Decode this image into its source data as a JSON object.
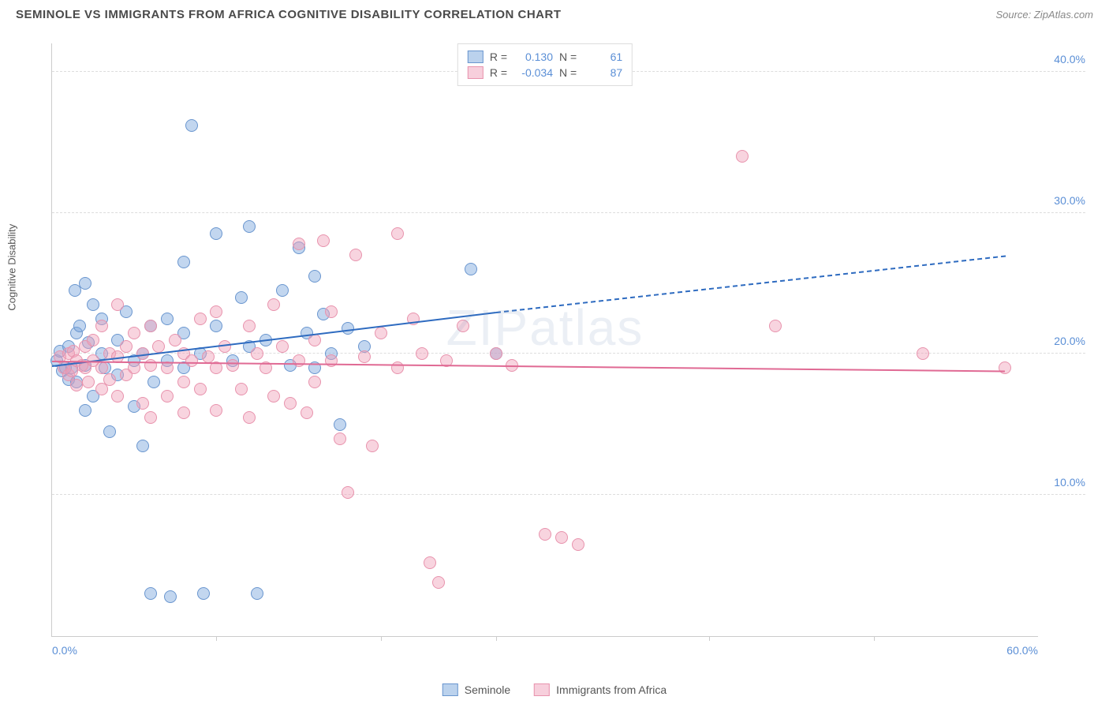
{
  "title": "SEMINOLE VS IMMIGRANTS FROM AFRICA COGNITIVE DISABILITY CORRELATION CHART",
  "source": "Source: ZipAtlas.com",
  "watermark": "ZIPatlas",
  "y_axis_label": "Cognitive Disability",
  "chart": {
    "type": "scatter",
    "xlim": [
      0,
      60
    ],
    "ylim": [
      0,
      42
    ],
    "x_ticks": [
      0,
      60
    ],
    "x_tick_labels": [
      "0.0%",
      "60.0%"
    ],
    "y_ticks": [
      10,
      20,
      30,
      40
    ],
    "y_tick_labels": [
      "10.0%",
      "20.0%",
      "30.0%",
      "40.0%"
    ],
    "background_color": "#ffffff",
    "grid_color": "#dddddd",
    "axis_color": "#cccccc",
    "tick_label_color": "#5b8fd6",
    "marker_size": 16,
    "series": [
      {
        "name": "Seminole",
        "color_fill": "rgba(120,165,220,0.45)",
        "color_stroke": "#6a96cf",
        "r_value": "0.130",
        "n_value": "61",
        "trend": {
          "x1": 0,
          "y1": 19.2,
          "x2": 27,
          "y2": 23.0,
          "color": "#2e6bc0",
          "extend_x": 58,
          "extend_y": 27.0
        },
        "points": [
          [
            0.3,
            19.5
          ],
          [
            0.5,
            20.2
          ],
          [
            0.6,
            18.8
          ],
          [
            0.8,
            19.0
          ],
          [
            1.0,
            20.5
          ],
          [
            1.0,
            18.2
          ],
          [
            1.2,
            19.0
          ],
          [
            1.4,
            24.5
          ],
          [
            1.5,
            21.5
          ],
          [
            1.5,
            18.0
          ],
          [
            1.7,
            22.0
          ],
          [
            2.0,
            25.0
          ],
          [
            2.0,
            19.2
          ],
          [
            2.0,
            16.0
          ],
          [
            2.2,
            20.8
          ],
          [
            2.5,
            23.5
          ],
          [
            2.5,
            17.0
          ],
          [
            3.0,
            22.5
          ],
          [
            3.0,
            20.0
          ],
          [
            3.2,
            19.0
          ],
          [
            3.5,
            14.5
          ],
          [
            4.0,
            21.0
          ],
          [
            4.0,
            18.5
          ],
          [
            4.5,
            23.0
          ],
          [
            5.0,
            19.5
          ],
          [
            5.0,
            16.3
          ],
          [
            5.5,
            20.0
          ],
          [
            5.5,
            13.5
          ],
          [
            6.0,
            22.0
          ],
          [
            6.0,
            3.0
          ],
          [
            6.2,
            18.0
          ],
          [
            7.0,
            22.5
          ],
          [
            7.0,
            19.5
          ],
          [
            7.2,
            2.8
          ],
          [
            8.0,
            26.5
          ],
          [
            8.0,
            21.5
          ],
          [
            8.0,
            19.0
          ],
          [
            8.5,
            36.2
          ],
          [
            9.0,
            20.0
          ],
          [
            9.2,
            3.0
          ],
          [
            10.0,
            28.5
          ],
          [
            10.0,
            22.0
          ],
          [
            11.0,
            19.5
          ],
          [
            11.5,
            24.0
          ],
          [
            12.0,
            29.0
          ],
          [
            12.0,
            20.5
          ],
          [
            12.5,
            3.0
          ],
          [
            13.0,
            21.0
          ],
          [
            14.0,
            24.5
          ],
          [
            14.5,
            19.2
          ],
          [
            15.0,
            27.5
          ],
          [
            15.5,
            21.5
          ],
          [
            16.0,
            25.5
          ],
          [
            16.0,
            19.0
          ],
          [
            16.5,
            22.8
          ],
          [
            17.0,
            20.0
          ],
          [
            17.5,
            15.0
          ],
          [
            18.0,
            21.8
          ],
          [
            19.0,
            20.5
          ],
          [
            25.5,
            26.0
          ],
          [
            27.0,
            20.0
          ]
        ]
      },
      {
        "name": "Immigrants from Africa",
        "color_fill": "rgba(240,160,185,0.45)",
        "color_stroke": "#e893ad",
        "r_value": "-0.034",
        "n_value": "87",
        "trend": {
          "x1": 0,
          "y1": 19.5,
          "x2": 58,
          "y2": 18.8,
          "color": "#e06a94"
        },
        "points": [
          [
            0.5,
            19.8
          ],
          [
            0.7,
            19.0
          ],
          [
            1.0,
            20.0
          ],
          [
            1.0,
            18.5
          ],
          [
            1.2,
            18.8
          ],
          [
            1.3,
            20.2
          ],
          [
            1.5,
            19.5
          ],
          [
            1.5,
            17.8
          ],
          [
            1.8,
            19.2
          ],
          [
            2.0,
            20.5
          ],
          [
            2.0,
            19.0
          ],
          [
            2.2,
            18.0
          ],
          [
            2.5,
            21.0
          ],
          [
            2.5,
            19.5
          ],
          [
            3.0,
            22.0
          ],
          [
            3.0,
            19.0
          ],
          [
            3.0,
            17.5
          ],
          [
            3.5,
            20.0
          ],
          [
            3.5,
            18.2
          ],
          [
            4.0,
            23.5
          ],
          [
            4.0,
            19.8
          ],
          [
            4.0,
            17.0
          ],
          [
            4.5,
            20.5
          ],
          [
            4.5,
            18.5
          ],
          [
            5.0,
            21.5
          ],
          [
            5.0,
            19.0
          ],
          [
            5.5,
            20.0
          ],
          [
            5.5,
            16.5
          ],
          [
            6.0,
            22.0
          ],
          [
            6.0,
            19.2
          ],
          [
            6.0,
            15.5
          ],
          [
            6.5,
            20.5
          ],
          [
            7.0,
            19.0
          ],
          [
            7.0,
            17.0
          ],
          [
            7.5,
            21.0
          ],
          [
            8.0,
            20.0
          ],
          [
            8.0,
            18.0
          ],
          [
            8.0,
            15.8
          ],
          [
            8.5,
            19.5
          ],
          [
            9.0,
            22.5
          ],
          [
            9.0,
            17.5
          ],
          [
            9.5,
            19.8
          ],
          [
            10.0,
            23.0
          ],
          [
            10.0,
            19.0
          ],
          [
            10.0,
            16.0
          ],
          [
            10.5,
            20.5
          ],
          [
            11.0,
            19.2
          ],
          [
            11.5,
            17.5
          ],
          [
            12.0,
            22.0
          ],
          [
            12.0,
            15.5
          ],
          [
            12.5,
            20.0
          ],
          [
            13.0,
            19.0
          ],
          [
            13.5,
            23.5
          ],
          [
            13.5,
            17.0
          ],
          [
            14.0,
            20.5
          ],
          [
            14.5,
            16.5
          ],
          [
            15.0,
            27.8
          ],
          [
            15.0,
            19.5
          ],
          [
            15.5,
            15.8
          ],
          [
            16.0,
            21.0
          ],
          [
            16.0,
            18.0
          ],
          [
            16.5,
            28.0
          ],
          [
            17.0,
            23.0
          ],
          [
            17.0,
            19.5
          ],
          [
            17.5,
            14.0
          ],
          [
            18.0,
            10.2
          ],
          [
            18.5,
            27.0
          ],
          [
            19.0,
            19.8
          ],
          [
            19.5,
            13.5
          ],
          [
            20.0,
            21.5
          ],
          [
            21.0,
            28.5
          ],
          [
            21.0,
            19.0
          ],
          [
            22.0,
            22.5
          ],
          [
            22.5,
            20.0
          ],
          [
            23.0,
            5.2
          ],
          [
            23.5,
            3.8
          ],
          [
            24.0,
            19.5
          ],
          [
            25.0,
            22.0
          ],
          [
            27.0,
            20.0
          ],
          [
            28.0,
            19.2
          ],
          [
            30.0,
            7.2
          ],
          [
            31.0,
            7.0
          ],
          [
            32.0,
            6.5
          ],
          [
            42.0,
            34.0
          ],
          [
            44.0,
            22.0
          ],
          [
            53.0,
            20.0
          ],
          [
            58.0,
            19.0
          ]
        ]
      }
    ]
  },
  "legend_top": {
    "r_label": "R =",
    "n_label": "N ="
  }
}
